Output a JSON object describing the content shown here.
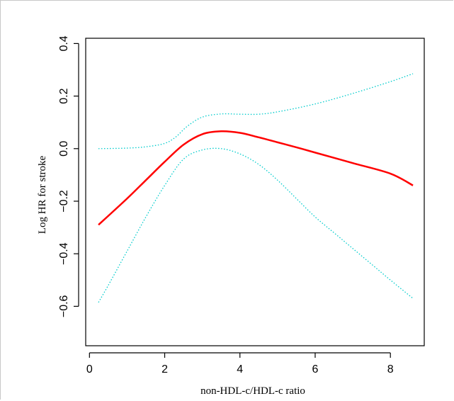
{
  "chart_data": {
    "type": "line",
    "title": "",
    "xlabel": "non-HDL-c/HDL-c ratio",
    "ylabel": "Log HR for stroke",
    "xlim": [
      -0.1,
      8.9
    ],
    "ylim": [
      -0.75,
      0.42
    ],
    "x_ticks": [
      0,
      2,
      4,
      6,
      8
    ],
    "x_tick_labels": [
      "0",
      "2",
      "4",
      "6",
      "8"
    ],
    "y_ticks": [
      0.4,
      0.2,
      0.0,
      -0.2,
      -0.4,
      -0.6
    ],
    "y_tick_labels": [
      "0.4",
      "0.2",
      "0.0",
      "−0.2",
      "−0.4",
      "−0.6"
    ],
    "grid": false,
    "legend": "none",
    "series": [
      {
        "role": "estimate",
        "color": "#ff0000",
        "style": "solid",
        "x": [
          0.24,
          1.0,
          1.5,
          2.0,
          2.5,
          3.0,
          3.5,
          4.0,
          4.5,
          5.0,
          5.5,
          6.0,
          7.0,
          8.0,
          8.6
        ],
        "y": [
          -0.29,
          -0.19,
          -0.12,
          -0.05,
          0.015,
          0.055,
          0.066,
          0.06,
          0.043,
          0.024,
          0.005,
          -0.015,
          -0.055,
          -0.095,
          -0.14
        ]
      },
      {
        "role": "upper-ci",
        "color": "#00cccc",
        "style": "dotted",
        "x": [
          0.24,
          1.0,
          1.5,
          2.0,
          2.3,
          2.6,
          3.0,
          3.5,
          4.0,
          4.5,
          5.0,
          6.0,
          7.0,
          8.0,
          8.6
        ],
        "y": [
          0.0,
          0.002,
          0.007,
          0.02,
          0.045,
          0.085,
          0.12,
          0.132,
          0.131,
          0.131,
          0.14,
          0.17,
          0.21,
          0.255,
          0.285
        ]
      },
      {
        "role": "lower-ci",
        "color": "#00cccc",
        "style": "dotted",
        "x": [
          0.24,
          0.5,
          1.0,
          1.5,
          2.0,
          2.5,
          3.0,
          3.5,
          4.0,
          4.5,
          5.0,
          5.5,
          6.0,
          6.5,
          7.0,
          7.5,
          8.0,
          8.6
        ],
        "y": [
          -0.585,
          -0.52,
          -0.39,
          -0.26,
          -0.14,
          -0.04,
          -0.005,
          0.0,
          -0.02,
          -0.06,
          -0.12,
          -0.19,
          -0.26,
          -0.32,
          -0.38,
          -0.44,
          -0.5,
          -0.57
        ]
      }
    ]
  }
}
